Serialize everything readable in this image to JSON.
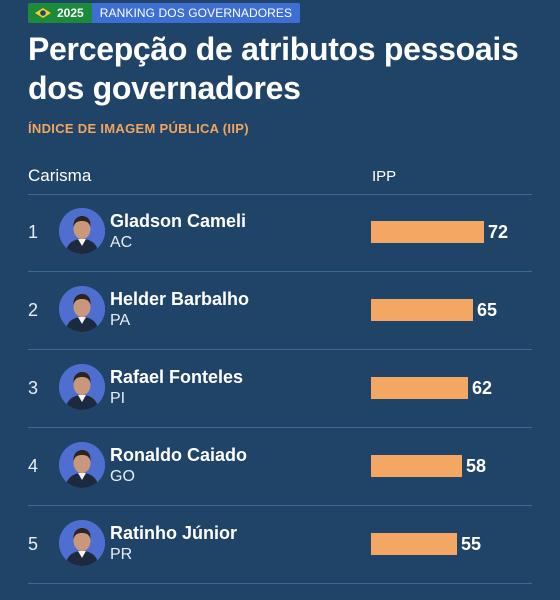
{
  "badge": {
    "year": "2025",
    "label": "RANKING DOS GOVERNADORES"
  },
  "title": "Percepção de atributos pessoais dos governadores",
  "subtitle": "ÍNDICE DE IMAGEM PÚBLICA (IIP)",
  "columns": {
    "left": "Carisma",
    "right": "IPP"
  },
  "colors": {
    "background": "#1f4468",
    "bar": "#f4a663",
    "accent": "#f2a65e",
    "badge_green": "#1b8a3a",
    "badge_blue": "#3d6fd2",
    "avatar_bg": "#4e6fcf"
  },
  "chart_data": {
    "type": "bar",
    "orientation": "horizontal",
    "title": "Percepção de atributos pessoais dos governadores",
    "subtitle": "ÍNDICE DE IMAGEM PÚBLICA (IIP)",
    "category_header": "Carisma",
    "value_header": "IPP",
    "xlim": [
      0,
      100
    ],
    "grid": false,
    "rows": [
      {
        "rank": "1",
        "name": "Gladson Cameli",
        "state": "AC",
        "value": 72,
        "avatar_icon": "portrait-icon"
      },
      {
        "rank": "2",
        "name": "Helder Barbalho",
        "state": "PA",
        "value": 65,
        "avatar_icon": "portrait-icon"
      },
      {
        "rank": "3",
        "name": "Rafael Fonteles",
        "state": "PI",
        "value": 62,
        "avatar_icon": "portrait-icon"
      },
      {
        "rank": "4",
        "name": "Ronaldo Caiado",
        "state": "GO",
        "value": 58,
        "avatar_icon": "portrait-icon"
      },
      {
        "rank": "5",
        "name": "Ratinho Júnior",
        "state": "PR",
        "value": 55,
        "avatar_icon": "portrait-icon"
      }
    ]
  }
}
